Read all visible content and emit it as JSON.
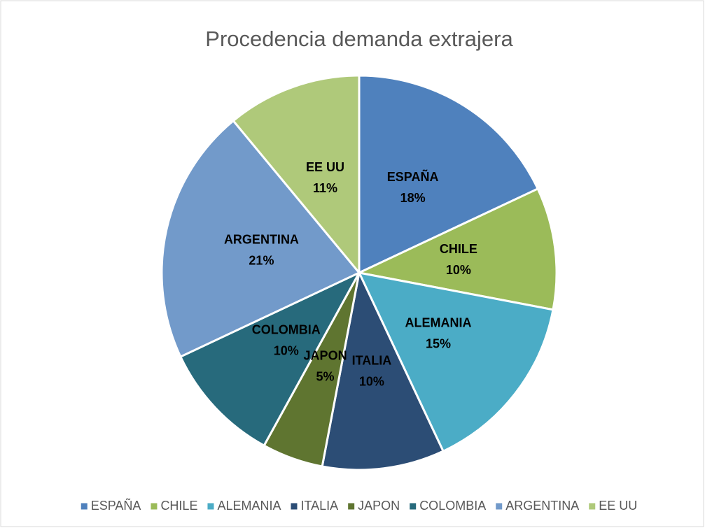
{
  "chart_data": {
    "type": "pie",
    "title": "Procedencia demanda extrajera",
    "categories": [
      "ESPAÑA",
      "CHILE",
      "ALEMANIA",
      "ITALIA",
      "JAPON",
      "COLOMBIA",
      "ARGENTINA",
      "EE UU"
    ],
    "values": [
      18,
      10,
      15,
      10,
      5,
      10,
      21,
      11
    ],
    "value_labels": [
      "18%",
      "10%",
      "15%",
      "10%",
      "5%",
      "10%",
      "21%",
      "11%"
    ],
    "colors": [
      "#4f81bd",
      "#9bbb59",
      "#4bacc6",
      "#2c4d75",
      "#5f7530",
      "#276a7c",
      "#729aca",
      "#afc97a"
    ],
    "legend": "bottom"
  }
}
